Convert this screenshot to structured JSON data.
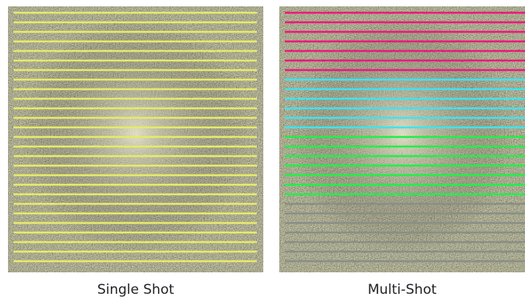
{
  "panels": [
    {
      "label": "Single Shot"
    },
    {
      "label": "Multi-Shot"
    }
  ]
}
